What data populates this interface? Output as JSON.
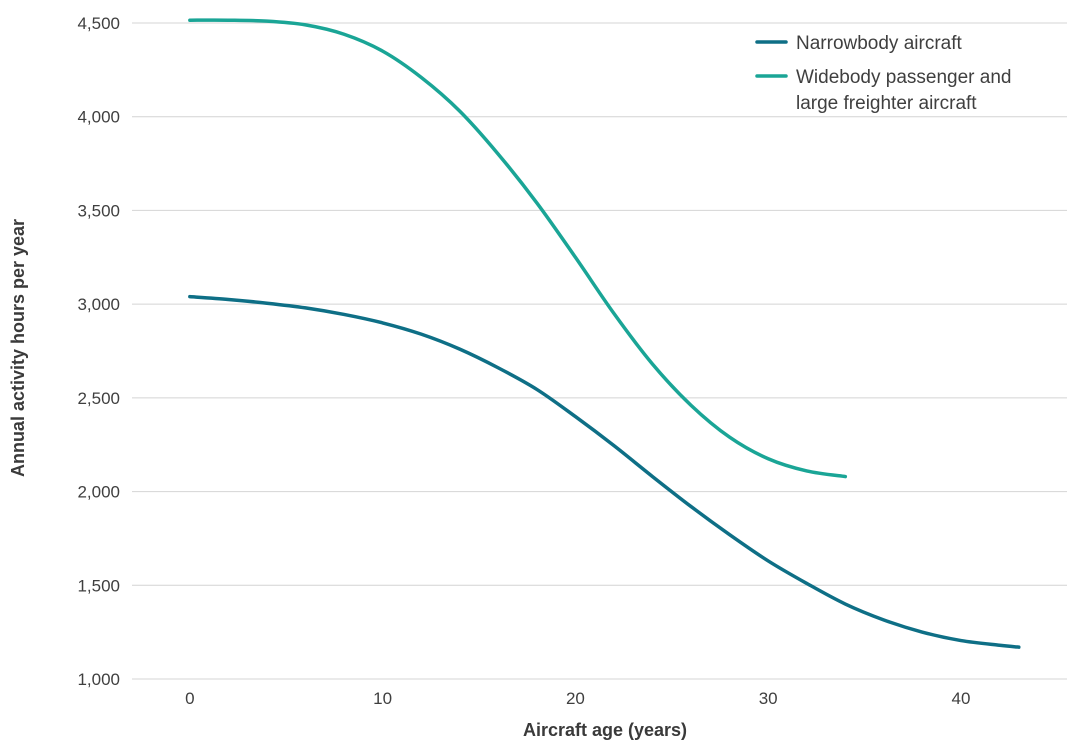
{
  "chart_data": {
    "type": "line",
    "title": "",
    "xlabel": "Aircraft age (years)",
    "ylabel": "Annual activity hours per year",
    "xlim": [
      -3,
      45.5
    ],
    "ylim": [
      1000,
      4500
    ],
    "x_ticks": [
      0,
      10,
      20,
      30,
      40
    ],
    "x_tick_labels": [
      "0",
      "10",
      "20",
      "30",
      "40"
    ],
    "y_ticks": [
      1000,
      1500,
      2000,
      2500,
      3000,
      3500,
      4000,
      4500
    ],
    "y_tick_labels": [
      "1,000",
      "1,500",
      "2,000",
      "2,500",
      "3,000",
      "3,500",
      "4,000",
      "4,500"
    ],
    "grid": true,
    "legend_position": "top-right",
    "series": [
      {
        "name": "Narrowbody aircraft",
        "color": "#0e6f86",
        "x": [
          0,
          2,
          4,
          6,
          8,
          10,
          12,
          14,
          16,
          18,
          20,
          22,
          24,
          26,
          28,
          30,
          32,
          34,
          36,
          38,
          40,
          42,
          43
        ],
        "y": [
          3040,
          3025,
          3005,
          2980,
          2945,
          2900,
          2840,
          2760,
          2660,
          2545,
          2400,
          2245,
          2080,
          1920,
          1770,
          1630,
          1510,
          1400,
          1315,
          1250,
          1205,
          1180,
          1170
        ]
      },
      {
        "name": "Widebody passenger and large freighter aircraft",
        "name_lines": [
          "Widebody passenger and",
          "large freighter aircraft"
        ],
        "color": "#1aa596",
        "x": [
          0,
          2,
          4,
          6,
          8,
          10,
          12,
          14,
          16,
          18,
          20,
          22,
          24,
          26,
          28,
          30,
          32,
          34
        ],
        "y": [
          4515,
          4515,
          4510,
          4490,
          4440,
          4350,
          4210,
          4030,
          3800,
          3540,
          3250,
          2950,
          2680,
          2460,
          2290,
          2175,
          2110,
          2080
        ]
      }
    ]
  }
}
